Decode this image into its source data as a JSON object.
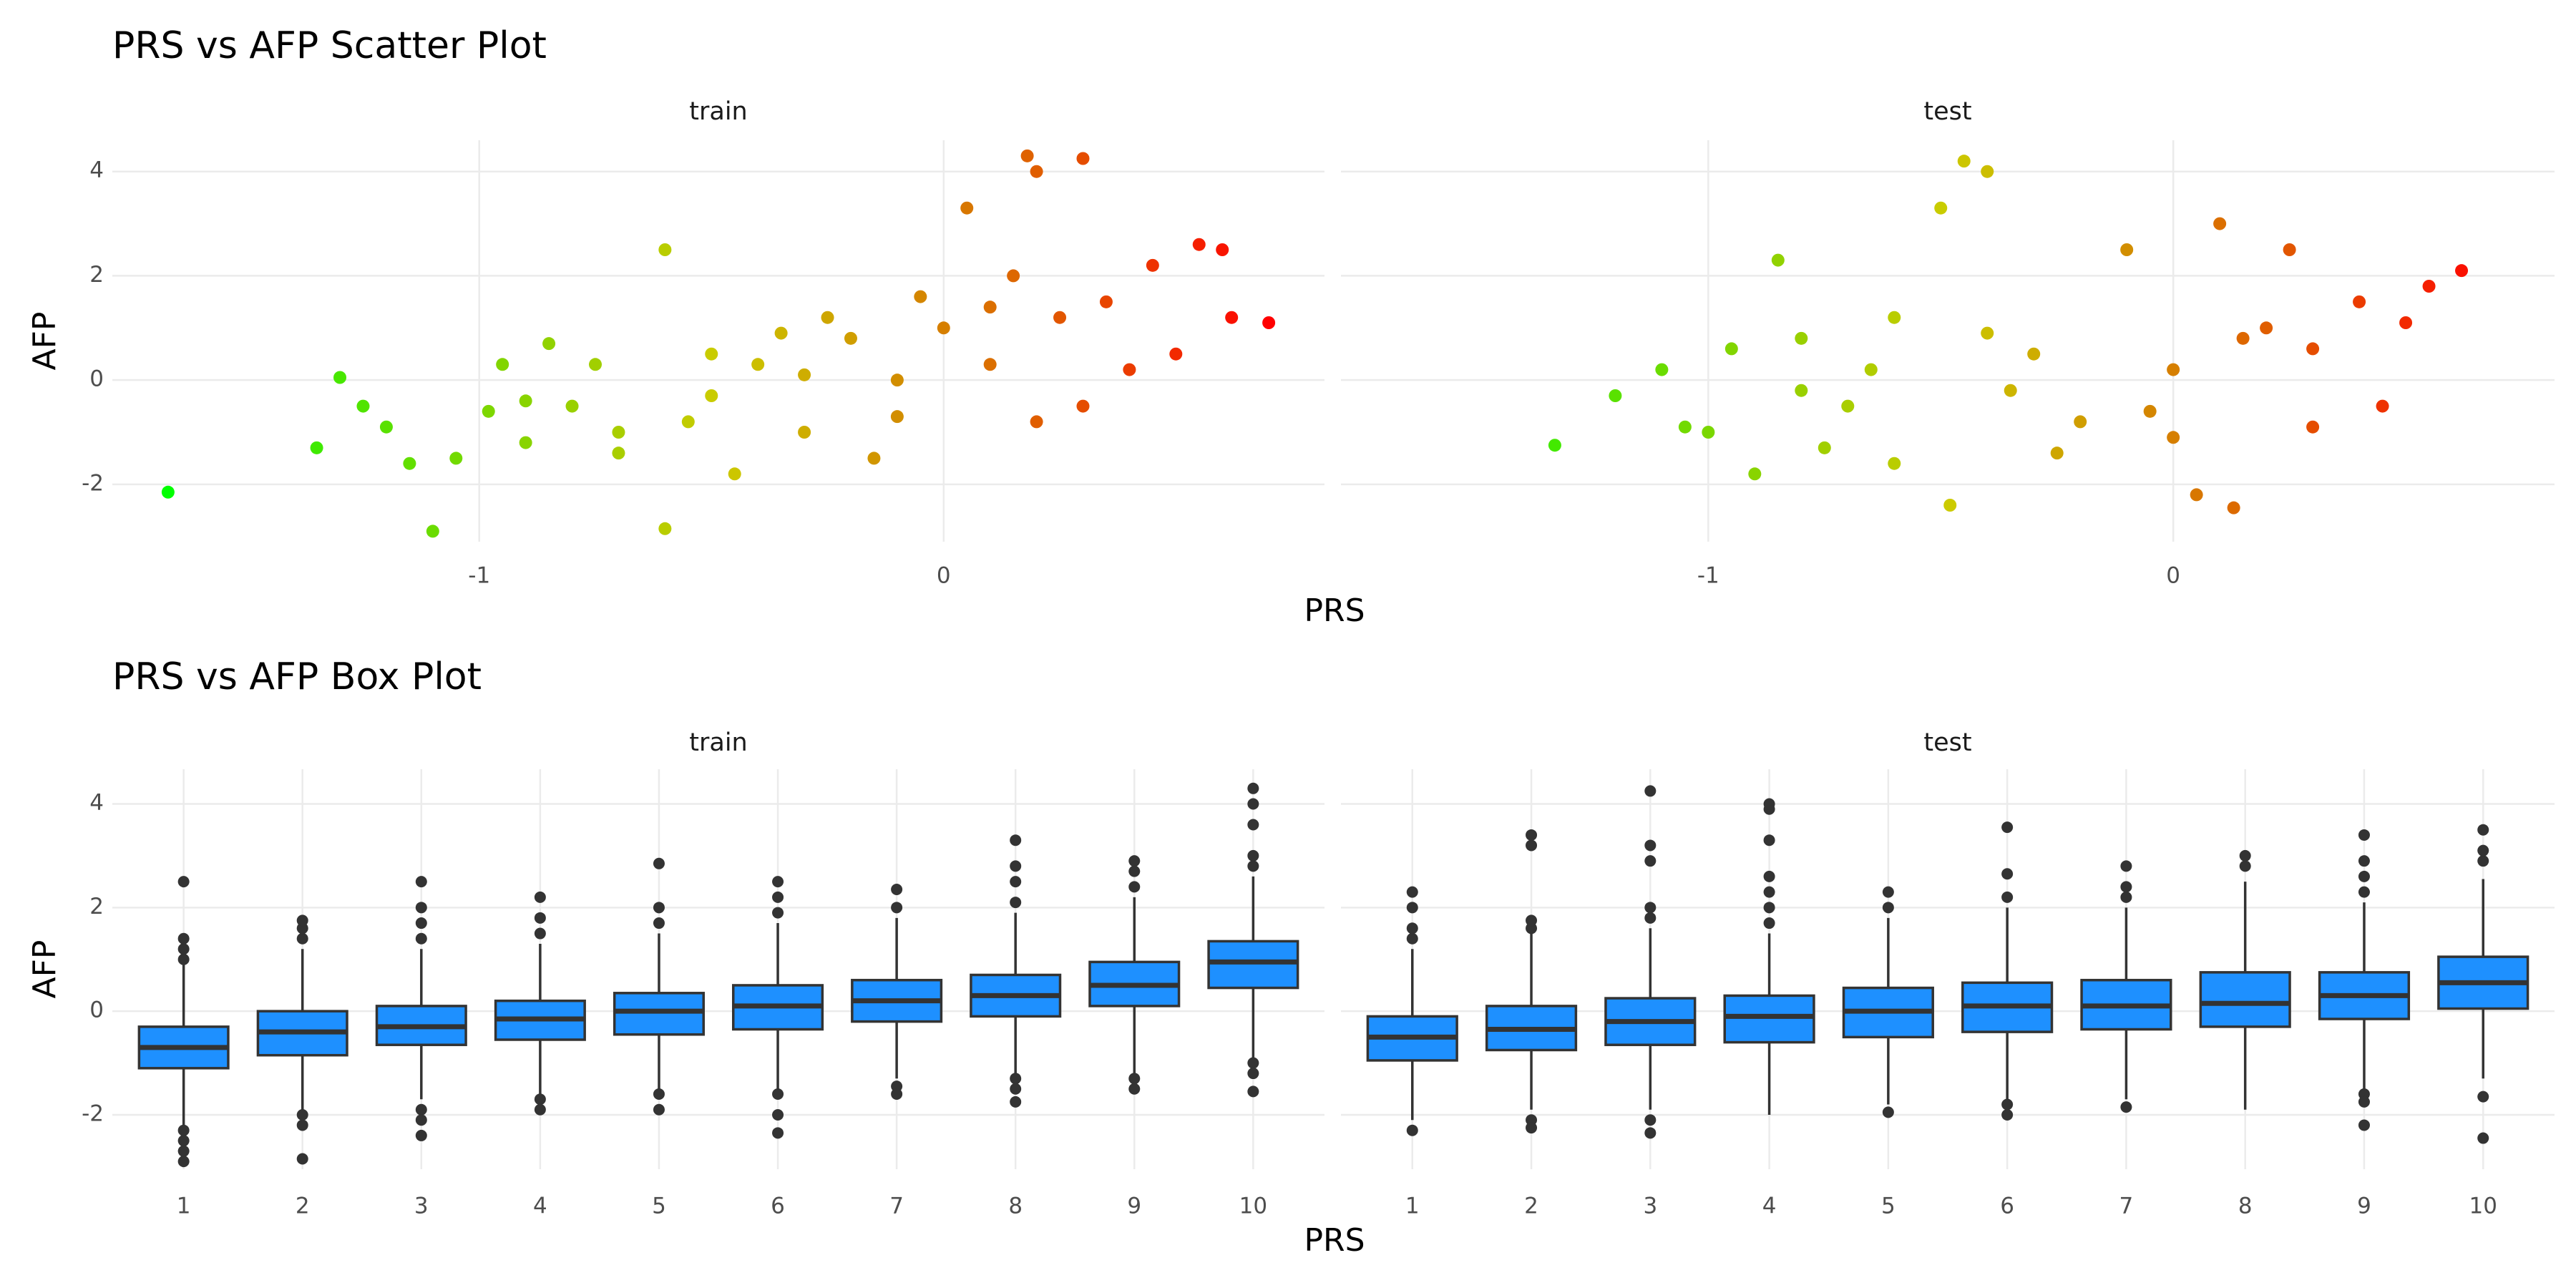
{
  "chart_data": [
    {
      "type": "scatter",
      "title": "PRS vs AFP Scatter Plot",
      "x_label": "PRS",
      "y_label": "AFP",
      "xlim": [
        -1.79,
        0.82
      ],
      "xticks": [
        -1,
        0
      ],
      "ylim": [
        -3.1,
        4.6
      ],
      "yticks": [
        -2,
        0,
        2,
        4
      ],
      "grid": true,
      "color_low": "#00ff00",
      "color_high": "#ff0000",
      "facets": [
        {
          "name": "train",
          "x": [
            -1.67,
            -1.35,
            -1.3,
            -1.25,
            -1.2,
            -1.15,
            -1.1,
            -1.05,
            -0.98,
            -0.95,
            -0.9,
            -0.85,
            -0.8,
            -0.75,
            -0.7,
            -0.6,
            -0.6,
            -0.55,
            -0.5,
            -0.45,
            -0.4,
            -0.35,
            -0.3,
            -0.25,
            -0.2,
            -0.15,
            -0.1,
            -0.05,
            0,
            0.05,
            0.1,
            0.15,
            0.18,
            0.2,
            0.2,
            0.25,
            0.3,
            0.3,
            0.35,
            0.4,
            0.45,
            0.5,
            0.55,
            0.6,
            0.62,
            0.7,
            -0.9,
            -0.7,
            -0.5,
            -0.3,
            -0.1,
            0.1
          ],
          "y": [
            -2.15,
            -1.3,
            0.05,
            -0.5,
            -0.9,
            -1.6,
            -2.9,
            -1.5,
            -0.6,
            0.3,
            -1.2,
            0.7,
            -0.5,
            0.3,
            -1.0,
            2.5,
            -2.85,
            -0.8,
            -0.3,
            -1.8,
            0.3,
            0.9,
            -1.0,
            1.2,
            0.8,
            -1.5,
            0.0,
            1.6,
            1.0,
            3.3,
            0.3,
            2.0,
            4.3,
            4.0,
            -0.8,
            1.2,
            4.25,
            -0.5,
            1.5,
            0.2,
            2.2,
            0.5,
            2.6,
            2.5,
            1.2,
            1.1,
            -0.4,
            -1.4,
            0.5,
            0.1,
            -0.7,
            1.4
          ]
        },
        {
          "name": "test",
          "x": [
            -1.33,
            -1.2,
            -1.1,
            -1.05,
            -1.0,
            -0.95,
            -0.9,
            -0.85,
            -0.8,
            -0.75,
            -0.7,
            -0.65,
            -0.6,
            -0.6,
            -0.5,
            -0.48,
            -0.45,
            -0.4,
            -0.35,
            -0.3,
            -0.25,
            -0.2,
            -0.1,
            -0.05,
            0,
            0.05,
            0.1,
            0.13,
            0.15,
            0.2,
            0.25,
            0.3,
            0.4,
            0.45,
            0.5,
            0.55,
            0.62,
            -0.8,
            -0.4,
            0.0,
            0.3
          ],
          "y": [
            -1.25,
            -0.3,
            0.2,
            -0.9,
            -1.0,
            0.6,
            -1.8,
            2.3,
            0.8,
            -1.3,
            -0.5,
            0.2,
            1.2,
            -1.6,
            3.3,
            -2.4,
            4.2,
            4.0,
            -0.2,
            0.5,
            -1.4,
            -0.8,
            2.5,
            -0.6,
            0.2,
            -2.2,
            3.0,
            -2.45,
            0.8,
            1.0,
            2.5,
            -0.9,
            1.5,
            -0.5,
            1.1,
            1.8,
            2.1,
            -0.2,
            0.9,
            -1.1,
            0.6
          ]
        }
      ]
    },
    {
      "type": "box",
      "title": "PRS vs AFP Box Plot",
      "x_label": "PRS",
      "y_label": "AFP",
      "categories": [
        "1",
        "2",
        "3",
        "4",
        "5",
        "6",
        "7",
        "8",
        "9",
        "10"
      ],
      "ylim": [
        -3.05,
        4.67
      ],
      "yticks": [
        -2,
        0,
        2,
        4
      ],
      "grid": true,
      "color": "#1e90ff",
      "line_color": "#333333",
      "facets": [
        {
          "name": "train",
          "q1": [
            -1.1,
            -0.85,
            -0.65,
            -0.55,
            -0.45,
            -0.35,
            -0.2,
            -0.1,
            0.1,
            0.45
          ],
          "median": [
            -0.7,
            -0.4,
            -0.3,
            -0.15,
            0.0,
            0.1,
            0.2,
            0.3,
            0.5,
            0.95
          ],
          "q3": [
            -0.3,
            0.0,
            0.1,
            0.2,
            0.35,
            0.5,
            0.6,
            0.7,
            0.95,
            1.35
          ],
          "whisker_low": [
            -2.2,
            -1.9,
            -1.7,
            -1.6,
            -1.5,
            -1.5,
            -1.3,
            -1.2,
            -1.2,
            -0.9
          ],
          "whisker_high": [
            0.9,
            1.2,
            1.2,
            1.3,
            1.5,
            1.7,
            1.8,
            1.9,
            2.2,
            2.6
          ],
          "outliers": [
            [
              -2.3,
              -2.5,
              -2.7,
              -2.9,
              1.0,
              1.2,
              1.4,
              2.5
            ],
            [
              -2.0,
              -2.2,
              -2.85,
              1.4,
              1.6,
              1.75
            ],
            [
              -1.9,
              -2.1,
              -2.4,
              1.4,
              1.7,
              2.0,
              2.5
            ],
            [
              -1.7,
              -1.9,
              1.5,
              1.8,
              2.2
            ],
            [
              -1.6,
              -1.9,
              1.7,
              2.0,
              2.85
            ],
            [
              -1.6,
              -2.0,
              -2.35,
              1.9,
              2.2,
              2.5
            ],
            [
              -1.45,
              -1.6,
              2.0,
              2.35
            ],
            [
              -1.3,
              -1.5,
              -1.75,
              2.1,
              2.5,
              2.8,
              3.3
            ],
            [
              -1.3,
              -1.5,
              2.4,
              2.7,
              2.9
            ],
            [
              -1.0,
              -1.2,
              -1.55,
              2.8,
              3.0,
              3.6,
              4.0,
              4.3
            ]
          ]
        },
        {
          "name": "test",
          "q1": [
            -0.95,
            -0.75,
            -0.65,
            -0.6,
            -0.5,
            -0.4,
            -0.35,
            -0.3,
            -0.15,
            0.05
          ],
          "median": [
            -0.5,
            -0.35,
            -0.2,
            -0.1,
            0.0,
            0.1,
            0.1,
            0.15,
            0.3,
            0.55
          ],
          "q3": [
            -0.1,
            0.1,
            0.25,
            0.3,
            0.45,
            0.55,
            0.6,
            0.75,
            0.75,
            1.05
          ],
          "whisker_low": [
            -2.1,
            -1.9,
            -1.9,
            -2.0,
            -1.8,
            -1.7,
            -1.7,
            -1.9,
            -1.5,
            -1.3
          ],
          "whisker_high": [
            1.2,
            1.5,
            1.6,
            1.5,
            1.8,
            2.0,
            2.0,
            2.5,
            2.1,
            2.55
          ],
          "outliers": [
            [
              -2.3,
              1.4,
              1.6,
              2.0,
              2.3
            ],
            [
              -2.1,
              -2.25,
              1.6,
              1.75,
              3.2,
              3.4
            ],
            [
              -2.1,
              -2.35,
              1.8,
              2.0,
              2.9,
              3.2,
              4.25
            ],
            [
              1.7,
              2.0,
              2.3,
              2.6,
              3.3,
              3.9,
              4.0
            ],
            [
              -1.95,
              2.0,
              2.3
            ],
            [
              -1.8,
              -2.0,
              2.2,
              2.65,
              3.55
            ],
            [
              -1.85,
              2.2,
              2.4,
              2.8
            ],
            [
              2.8,
              3.0
            ],
            [
              -1.6,
              -1.75,
              -2.2,
              2.3,
              2.6,
              2.9,
              3.4
            ],
            [
              -1.65,
              -2.45,
              2.9,
              3.1,
              3.5
            ]
          ]
        }
      ]
    }
  ]
}
